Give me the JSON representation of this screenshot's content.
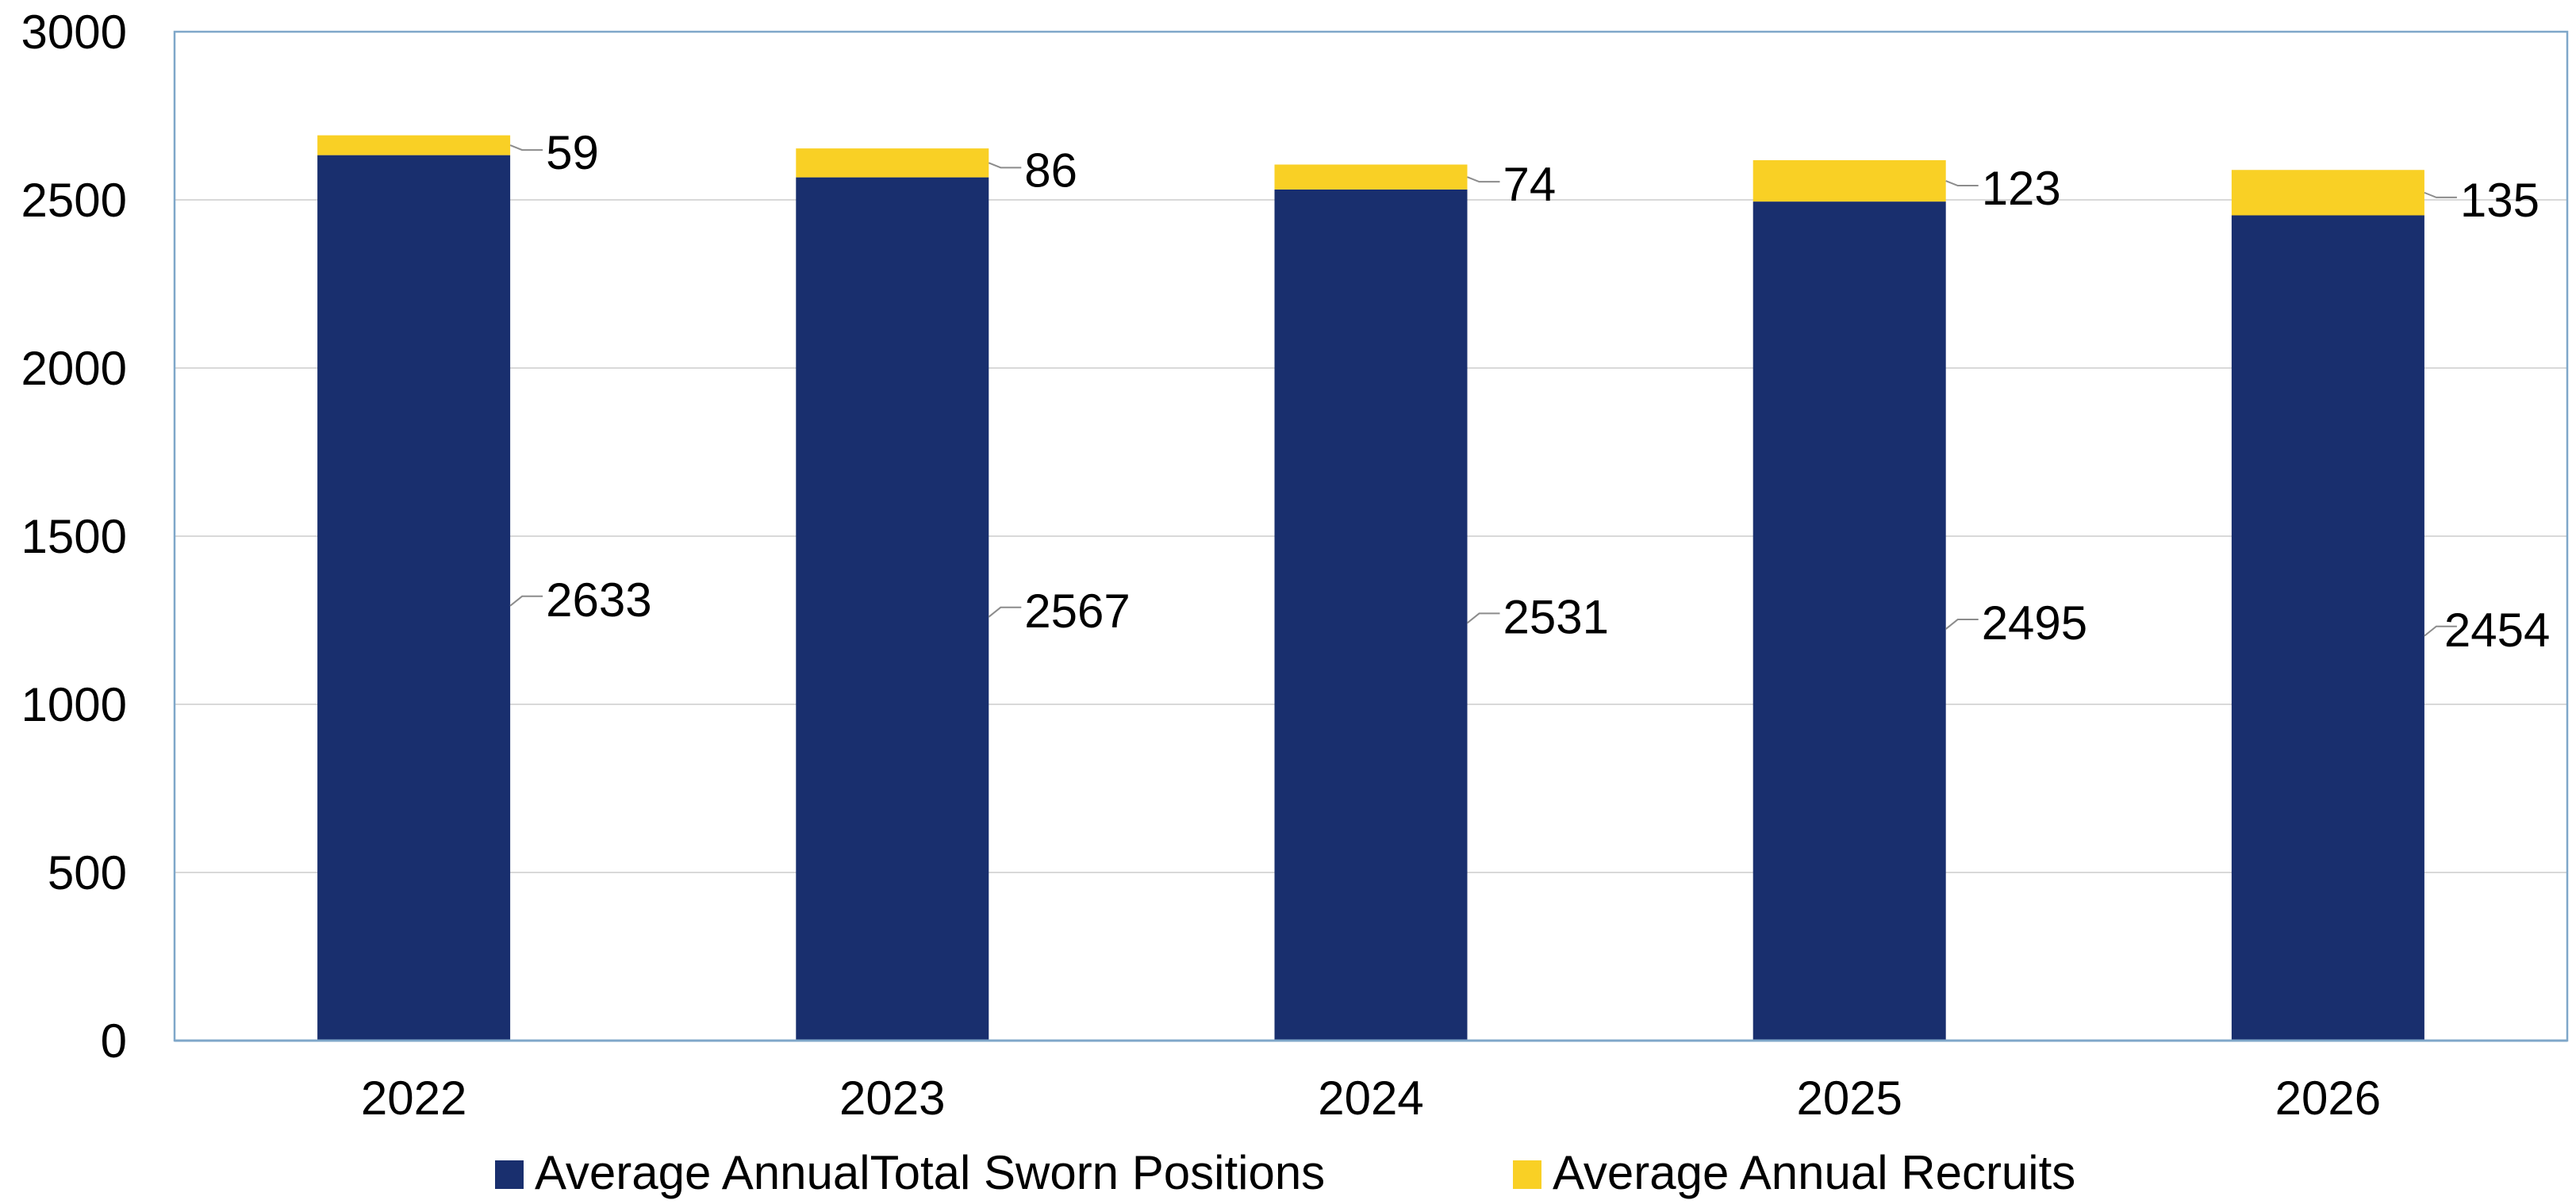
{
  "chart_data": {
    "type": "bar",
    "stacked": true,
    "categories": [
      "2022",
      "2023",
      "2024",
      "2025",
      "2026"
    ],
    "series": [
      {
        "name": "Average AnnualTotal Sworn Positions",
        "values": [
          2633,
          2567,
          2531,
          2495,
          2454
        ],
        "color": "#192F6E"
      },
      {
        "name": "Average Annual Recruits",
        "values": [
          59,
          86,
          74,
          123,
          135
        ],
        "color": "#F9D025"
      }
    ],
    "title": "",
    "xlabel": "",
    "ylabel": "",
    "ylim": [
      0,
      3000
    ],
    "yticks": [
      0,
      500,
      1000,
      1500,
      2000,
      2500,
      3000
    ],
    "grid": true,
    "legend_position": "bottom",
    "colors": {
      "plot_border": "#7FA7C9",
      "gridline": "#D9D9D9",
      "leader_line": "#8C8C8C"
    }
  }
}
